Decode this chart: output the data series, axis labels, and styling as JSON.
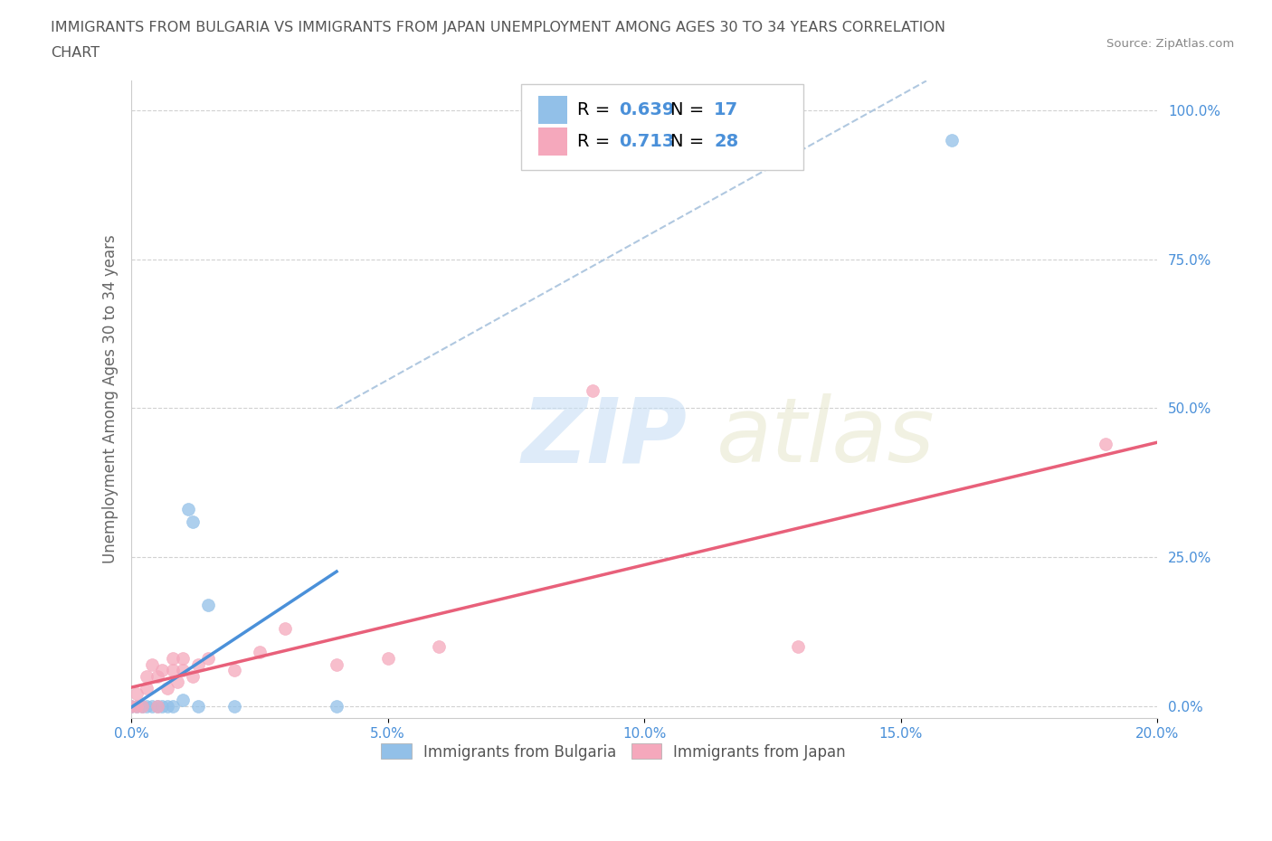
{
  "title_line1": "IMMIGRANTS FROM BULGARIA VS IMMIGRANTS FROM JAPAN UNEMPLOYMENT AMONG AGES 30 TO 34 YEARS CORRELATION",
  "title_line2": "CHART",
  "source": "Source: ZipAtlas.com",
  "ylabel": "Unemployment Among Ages 30 to 34 years",
  "xlim": [
    0,
    0.2
  ],
  "ylim": [
    -0.02,
    1.05
  ],
  "yticks": [
    0.0,
    0.25,
    0.5,
    0.75,
    1.0
  ],
  "ytick_labels": [
    "0.0%",
    "25.0%",
    "50.0%",
    "75.0%",
    "100.0%"
  ],
  "xticks": [
    0.0,
    0.05,
    0.1,
    0.15,
    0.2
  ],
  "xtick_labels": [
    "0.0%",
    "5.0%",
    "10.0%",
    "15.0%",
    "20.0%"
  ],
  "bulgaria_color": "#92c0e8",
  "japan_color": "#f5a8bc",
  "bulgaria_R": 0.639,
  "bulgaria_N": 17,
  "japan_R": 0.713,
  "japan_N": 28,
  "legend_label_bulgaria": "Immigrants from Bulgaria",
  "legend_label_japan": "Immigrants from Japan",
  "bg_color": "#ffffff",
  "grid_color": "#cccccc",
  "title_color": "#555555",
  "axis_label_color": "#666666",
  "tick_label_color": "#4a90d9",
  "bulgaria_scatter_x": [
    0.0,
    0.001,
    0.002,
    0.003,
    0.004,
    0.005,
    0.006,
    0.007,
    0.008,
    0.01,
    0.011,
    0.012,
    0.013,
    0.015,
    0.02,
    0.04,
    0.16
  ],
  "bulgaria_scatter_y": [
    0.0,
    0.0,
    0.0,
    0.0,
    0.0,
    0.0,
    0.0,
    0.0,
    0.0,
    0.01,
    0.33,
    0.31,
    0.0,
    0.17,
    0.0,
    0.0,
    0.95
  ],
  "japan_scatter_x": [
    0.0,
    0.001,
    0.001,
    0.002,
    0.003,
    0.003,
    0.004,
    0.005,
    0.005,
    0.006,
    0.007,
    0.008,
    0.008,
    0.009,
    0.01,
    0.01,
    0.012,
    0.013,
    0.015,
    0.02,
    0.025,
    0.03,
    0.04,
    0.05,
    0.06,
    0.09,
    0.13,
    0.19
  ],
  "japan_scatter_y": [
    0.0,
    0.0,
    0.02,
    0.0,
    0.03,
    0.05,
    0.07,
    0.0,
    0.05,
    0.06,
    0.03,
    0.06,
    0.08,
    0.04,
    0.06,
    0.08,
    0.05,
    0.07,
    0.08,
    0.06,
    0.09,
    0.13,
    0.07,
    0.08,
    0.1,
    0.53,
    0.1,
    0.44
  ],
  "bulgaria_line_color": "#4a90d9",
  "japan_line_color": "#e8607a",
  "diagonal_line_color": "#b0c8e0",
  "diagonal_linestyle": "--",
  "marker_size": 100
}
